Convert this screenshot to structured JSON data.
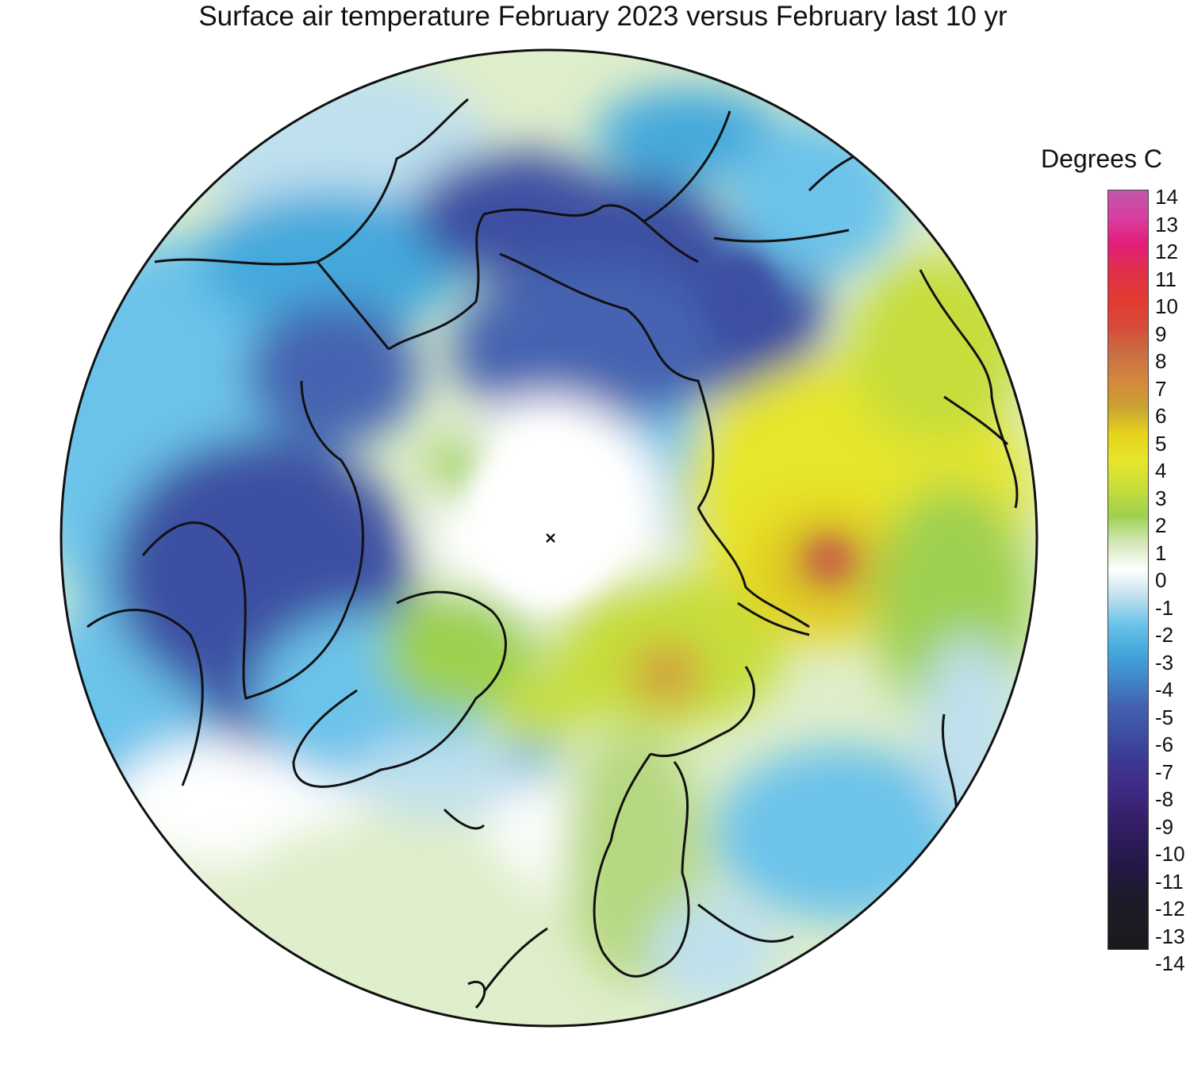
{
  "title": "Surface air temperature February 2023 versus February last 10 yr",
  "legend": {
    "title": "Degrees C",
    "ticks": [
      "14",
      "13",
      "12",
      "11",
      "10",
      "9",
      "8",
      "7",
      "6",
      "5",
      "4",
      "3",
      "2",
      "1",
      "0",
      "-1",
      "-2",
      "-3",
      "-4",
      "-5",
      "-6",
      "-7",
      "-8",
      "-9",
      "-10",
      "-11",
      "-12",
      "-13",
      "-14"
    ],
    "colors": [
      "#c158a8",
      "#d83ea0",
      "#e21d7a",
      "#e0304a",
      "#e23a30",
      "#d9493a",
      "#c96e43",
      "#d5873d",
      "#c9a232",
      "#e6d41c",
      "#e6e62a",
      "#c6dd3a",
      "#9ed050",
      "#d4e6b8",
      "#ffffff",
      "#bfe0ee",
      "#6cc3ea",
      "#45a9dc",
      "#3f88c8",
      "#4463b0",
      "#3e4fa2",
      "#3c3a93",
      "#3f2b87",
      "#37216e",
      "#2d1b5a",
      "#241845",
      "#1c1a2c",
      "#1b1d22",
      "#17191b"
    ]
  },
  "map": {
    "projection": "north-polar-stereographic",
    "pole_marker": "pole-x-icon",
    "anomaly_regions": [
      {
        "name": "arctic-central-ocean",
        "value": 0
      },
      {
        "name": "north-america-west",
        "value": -2
      },
      {
        "name": "canadian-arctic",
        "value": -7
      },
      {
        "name": "hudson-bay-region",
        "value": -7
      },
      {
        "name": "chukotka-alaska-sea",
        "value": -4
      },
      {
        "name": "east-siberia",
        "value": -7
      },
      {
        "name": "central-siberia",
        "value": -4
      },
      {
        "name": "barents-kara-sea",
        "value": 3
      },
      {
        "name": "west-siberia",
        "value": 6
      },
      {
        "name": "european-russia",
        "value": -2
      },
      {
        "name": "scandinavia",
        "value": 2
      },
      {
        "name": "north-atlantic",
        "value": 1
      },
      {
        "name": "greenland",
        "value": -1
      }
    ]
  }
}
